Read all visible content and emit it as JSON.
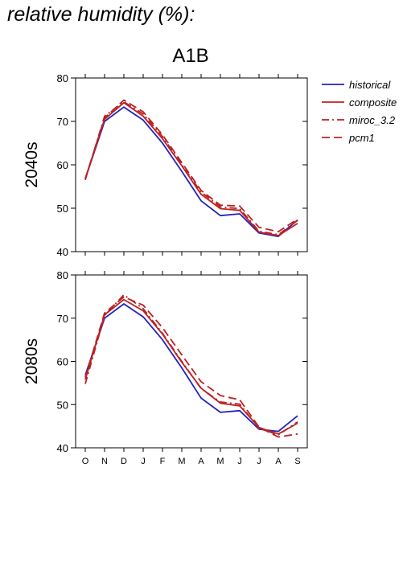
{
  "page": {
    "title": "relative humidity (%):"
  },
  "chart_data": {
    "type": "line",
    "title": "A1B",
    "categories": [
      "O",
      "N",
      "D",
      "J",
      "F",
      "M",
      "A",
      "M",
      "J",
      "J",
      "A",
      "S"
    ],
    "ylim": [
      40,
      80
    ],
    "yticks": [
      40,
      50,
      60,
      70,
      80
    ],
    "legend": {
      "placement": "top-right",
      "entries": [
        "historical",
        "composite",
        "miroc_3.2",
        "pcm1"
      ]
    },
    "colors": {
      "historical": "#2222bb",
      "projection": "#bb2222"
    },
    "panels": [
      {
        "label": "2040s",
        "series": [
          {
            "name": "historical",
            "style": "solid",
            "color": "#2222bb",
            "values": [
              56.8,
              70.0,
              73.3,
              70.3,
              65.0,
              58.5,
              51.7,
              48.3,
              48.7,
              44.3,
              43.5,
              47.3
            ]
          },
          {
            "name": "composite",
            "style": "solid",
            "color": "#bb2222",
            "values": [
              56.8,
              70.5,
              74.3,
              71.2,
              66.0,
              59.8,
              53.2,
              49.9,
              49.5,
              44.5,
              43.7,
              46.5
            ]
          },
          {
            "name": "miroc_3.2",
            "style": "dashdot",
            "color": "#bb2222",
            "values": [
              56.5,
              71.2,
              74.5,
              71.7,
              66.5,
              60.0,
              53.7,
              50.3,
              49.9,
              44.7,
              43.9,
              47.2
            ]
          },
          {
            "name": "pcm1",
            "style": "dash",
            "color": "#bb2222",
            "values": [
              56.8,
              70.8,
              74.9,
              72.2,
              66.9,
              60.5,
              54.1,
              50.7,
              50.5,
              45.6,
              44.6,
              47.5
            ]
          }
        ]
      },
      {
        "label": "2080s",
        "series": [
          {
            "name": "historical",
            "style": "solid",
            "color": "#2222bb",
            "values": [
              56.8,
              70.0,
              73.3,
              70.3,
              65.0,
              58.5,
              51.5,
              48.2,
              48.6,
              44.3,
              43.8,
              47.4
            ]
          },
          {
            "name": "composite",
            "style": "solid",
            "color": "#bb2222",
            "values": [
              55.8,
              70.8,
              74.3,
              71.7,
              66.3,
              59.8,
              53.8,
              50.3,
              49.7,
              44.7,
              43.2,
              45.7
            ]
          },
          {
            "name": "miroc_3.2",
            "style": "dashdot",
            "color": "#bb2222",
            "values": [
              54.8,
              70.6,
              75.4,
              72.2,
              66.5,
              60.0,
              53.7,
              50.6,
              50.1,
              44.5,
              43.0,
              46.0
            ]
          },
          {
            "name": "pcm1",
            "style": "dash",
            "color": "#bb2222",
            "values": [
              56.3,
              71.2,
              74.9,
              73.0,
              67.8,
              61.5,
              55.3,
              52.1,
              51.1,
              44.8,
              42.5,
              43.2
            ]
          }
        ]
      }
    ]
  }
}
